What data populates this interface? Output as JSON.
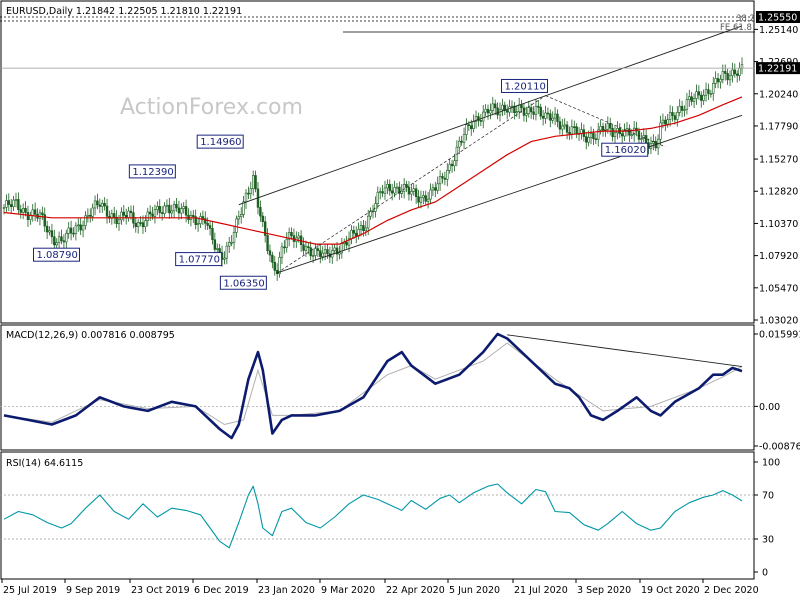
{
  "chart_data": [
    {
      "type": "candlestick",
      "title": "EURUSD,Daily  1.21842 1.22505 1.21810 1.22191",
      "watermark": "ActionForex.com",
      "x_ticks": [
        "25 Jul 2019",
        "9 Sep 2019",
        "23 Oct 2019",
        "6 Dec 2019",
        "23 Jan 2020",
        "9 Mar 2020",
        "22 Apr 2020",
        "5 Jun 2020",
        "21 Jul 2020",
        "3 Sep 2020",
        "19 Oct 2020",
        "2 Dec 2020"
      ],
      "y_ticks": [
        "1.25140",
        "1.22690",
        "1.20240",
        "1.17790",
        "1.15270",
        "1.12820",
        "1.10370",
        "1.07920",
        "1.05470",
        "1.03020"
      ],
      "ylim": [
        1.0302,
        1.2555
      ],
      "last_price": "1.22191",
      "fib_labels": [
        {
          "text": "38.2",
          "level": "1.25550"
        },
        {
          "text": "FE 61.8",
          "level": "1.25140"
        }
      ],
      "pivots": [
        {
          "label": "1.08790",
          "date": "2019-08-01",
          "value": 1.0879
        },
        {
          "label": "1.12390",
          "date": "2019-11-04",
          "value": 1.1239
        },
        {
          "label": "1.07770",
          "date": "2020-02-20",
          "value": 1.0777
        },
        {
          "label": "1.14960",
          "date": "2020-03-09",
          "value": 1.1496
        },
        {
          "label": "1.06350",
          "date": "2020-03-23",
          "value": 1.0635
        },
        {
          "label": "1.20110",
          "date": "2020-09-01",
          "value": 1.2011
        },
        {
          "label": "1.16020",
          "date": "2020-11-04",
          "value": 1.1602
        }
      ],
      "close_path": [
        [
          0,
          1.116
        ],
        [
          5,
          1.118
        ],
        [
          10,
          1.112
        ],
        [
          15,
          1.108
        ],
        [
          18,
          1.1
        ],
        [
          20,
          1.094
        ],
        [
          24,
          1.09
        ],
        [
          28,
          1.096
        ],
        [
          32,
          1.104
        ],
        [
          36,
          1.112
        ],
        [
          40,
          1.118
        ],
        [
          44,
          1.112
        ],
        [
          48,
          1.106
        ],
        [
          52,
          1.11
        ],
        [
          56,
          1.104
        ],
        [
          60,
          1.108
        ],
        [
          64,
          1.112
        ],
        [
          68,
          1.118
        ],
        [
          72,
          1.114
        ],
        [
          76,
          1.11
        ],
        [
          80,
          1.108
        ],
        [
          84,
          1.106
        ],
        [
          86,
          1.094
        ],
        [
          88,
          1.086
        ],
        [
          90,
          1.08
        ],
        [
          92,
          1.082
        ],
        [
          96,
          1.096
        ],
        [
          99,
          1.112
        ],
        [
          102,
          1.13
        ],
        [
          104,
          1.14
        ],
        [
          106,
          1.12
        ],
        [
          108,
          1.1
        ],
        [
          110,
          1.084
        ],
        [
          112,
          1.07
        ],
        [
          114,
          1.07
        ],
        [
          116,
          1.086
        ],
        [
          118,
          1.094
        ],
        [
          122,
          1.09
        ],
        [
          126,
          1.086
        ],
        [
          130,
          1.082
        ],
        [
          134,
          1.078
        ],
        [
          138,
          1.084
        ],
        [
          142,
          1.088
        ],
        [
          146,
          1.094
        ],
        [
          150,
          1.102
        ],
        [
          154,
          1.116
        ],
        [
          158,
          1.128
        ],
        [
          162,
          1.132
        ],
        [
          166,
          1.13
        ],
        [
          170,
          1.126
        ],
        [
          174,
          1.124
        ],
        [
          178,
          1.126
        ],
        [
          182,
          1.134
        ],
        [
          186,
          1.148
        ],
        [
          190,
          1.164
        ],
        [
          194,
          1.176
        ],
        [
          198,
          1.186
        ],
        [
          202,
          1.19
        ],
        [
          206,
          1.188
        ],
        [
          210,
          1.194
        ],
        [
          214,
          1.19
        ],
        [
          218,
          1.186
        ],
        [
          222,
          1.194
        ],
        [
          226,
          1.184
        ],
        [
          230,
          1.182
        ],
        [
          234,
          1.178
        ],
        [
          238,
          1.174
        ],
        [
          242,
          1.168
        ],
        [
          246,
          1.172
        ],
        [
          250,
          1.176
        ],
        [
          254,
          1.172
        ],
        [
          258,
          1.176
        ],
        [
          262,
          1.172
        ],
        [
          266,
          1.168
        ],
        [
          270,
          1.166
        ],
        [
          272,
          1.164
        ],
        [
          274,
          1.176
        ],
        [
          278,
          1.184
        ],
        [
          282,
          1.192
        ],
        [
          286,
          1.196
        ],
        [
          290,
          1.2
        ],
        [
          294,
          1.206
        ],
        [
          298,
          1.212
        ],
        [
          302,
          1.216
        ],
        [
          306,
          1.222
        ],
        [
          308,
          1.2219
        ]
      ],
      "ma_path": [
        [
          0,
          1.112
        ],
        [
          20,
          1.108
        ],
        [
          40,
          1.108
        ],
        [
          60,
          1.108
        ],
        [
          80,
          1.108
        ],
        [
          90,
          1.104
        ],
        [
          100,
          1.1
        ],
        [
          110,
          1.096
        ],
        [
          120,
          1.092
        ],
        [
          130,
          1.088
        ],
        [
          140,
          1.088
        ],
        [
          150,
          1.096
        ],
        [
          160,
          1.106
        ],
        [
          170,
          1.114
        ],
        [
          180,
          1.12
        ],
        [
          190,
          1.132
        ],
        [
          200,
          1.144
        ],
        [
          210,
          1.156
        ],
        [
          220,
          1.166
        ],
        [
          230,
          1.17
        ],
        [
          240,
          1.172
        ],
        [
          250,
          1.174
        ],
        [
          260,
          1.174
        ],
        [
          270,
          1.176
        ],
        [
          280,
          1.18
        ],
        [
          290,
          1.186
        ],
        [
          300,
          1.194
        ],
        [
          308,
          1.2
        ]
      ],
      "trendlines": [
        {
          "name": "upper-channel",
          "from": [
            98,
            1.118
          ],
          "to": [
            308,
            1.254
          ]
        },
        {
          "name": "lower-channel",
          "from": [
            114,
            1.066
          ],
          "to": [
            308,
            1.186
          ]
        },
        {
          "name": "rise-dashed",
          "from": [
            114,
            1.066
          ],
          "to": [
            226,
            1.201
          ]
        },
        {
          "name": "pullback-dashed",
          "from": [
            226,
            1.201
          ],
          "to": [
            276,
            1.162
          ]
        }
      ]
    },
    {
      "type": "line",
      "title": "MACD(12,26,9) 0.007816 0.008795",
      "y_ticks": [
        "0.015991",
        "0.00",
        "-0.00876"
      ],
      "ylim": [
        -0.00876,
        0.015991
      ],
      "series": [
        {
          "name": "MACD",
          "values": [
            [
              0,
              -0.002
            ],
            [
              10,
              -0.003
            ],
            [
              20,
              -0.004
            ],
            [
              30,
              -0.002
            ],
            [
              40,
              0.002
            ],
            [
              50,
              0.0
            ],
            [
              60,
              -0.001
            ],
            [
              70,
              0.001
            ],
            [
              80,
              0.0
            ],
            [
              90,
              -0.005
            ],
            [
              95,
              -0.007
            ],
            [
              98,
              -0.004
            ],
            [
              102,
              0.006
            ],
            [
              106,
              0.012
            ],
            [
              108,
              0.008
            ],
            [
              112,
              -0.006
            ],
            [
              116,
              -0.003
            ],
            [
              120,
              -0.002
            ],
            [
              130,
              -0.002
            ],
            [
              140,
              -0.001
            ],
            [
              150,
              0.002
            ],
            [
              160,
              0.01
            ],
            [
              166,
              0.012
            ],
            [
              170,
              0.009
            ],
            [
              180,
              0.005
            ],
            [
              190,
              0.007
            ],
            [
              200,
              0.012
            ],
            [
              206,
              0.016
            ],
            [
              210,
              0.015
            ],
            [
              220,
              0.01
            ],
            [
              230,
              0.005
            ],
            [
              236,
              0.004
            ],
            [
              240,
              0.002
            ],
            [
              245,
              -0.002
            ],
            [
              250,
              -0.003
            ],
            [
              256,
              -0.001
            ],
            [
              264,
              0.002
            ],
            [
              270,
              -0.001
            ],
            [
              274,
              -0.002
            ],
            [
              280,
              0.001
            ],
            [
              290,
              0.004
            ],
            [
              296,
              0.007
            ],
            [
              300,
              0.007
            ],
            [
              304,
              0.0085
            ],
            [
              308,
              0.0078
            ]
          ]
        },
        {
          "name": "Signal",
          "values": [
            [
              0,
              -0.002
            ],
            [
              20,
              -0.0035
            ],
            [
              40,
              0.0015
            ],
            [
              60,
              -0.0005
            ],
            [
              80,
              0.0
            ],
            [
              92,
              -0.004
            ],
            [
              100,
              -0.003
            ],
            [
              106,
              0.008
            ],
            [
              112,
              -0.002
            ],
            [
              120,
              -0.002
            ],
            [
              140,
              -0.001
            ],
            [
              160,
              0.007
            ],
            [
              170,
              0.009
            ],
            [
              180,
              0.006
            ],
            [
              200,
              0.01
            ],
            [
              210,
              0.014
            ],
            [
              230,
              0.006
            ],
            [
              250,
              -0.001
            ],
            [
              270,
              0.0
            ],
            [
              290,
              0.004
            ],
            [
              300,
              0.0065
            ],
            [
              308,
              0.0088
            ]
          ]
        }
      ],
      "trendline": {
        "from": [
          210,
          0.0158
        ],
        "to": [
          308,
          0.0088
        ]
      }
    },
    {
      "type": "line",
      "title": "RSI(14) 64.6115",
      "y_ticks": [
        "100",
        "70",
        "30",
        "0"
      ],
      "ylim": [
        0,
        100
      ],
      "levels": [
        70,
        30
      ],
      "series": [
        {
          "name": "RSI",
          "values": [
            [
              0,
              48
            ],
            [
              6,
              55
            ],
            [
              12,
              52
            ],
            [
              18,
              45
            ],
            [
              24,
              40
            ],
            [
              28,
              44
            ],
            [
              34,
              58
            ],
            [
              40,
              70
            ],
            [
              46,
              55
            ],
            [
              52,
              48
            ],
            [
              58,
              62
            ],
            [
              64,
              50
            ],
            [
              70,
              58
            ],
            [
              76,
              56
            ],
            [
              82,
              52
            ],
            [
              86,
              40
            ],
            [
              90,
              28
            ],
            [
              94,
              22
            ],
            [
              98,
              45
            ],
            [
              102,
              70
            ],
            [
              104,
              78
            ],
            [
              106,
              62
            ],
            [
              108,
              40
            ],
            [
              112,
              33
            ],
            [
              116,
              55
            ],
            [
              120,
              58
            ],
            [
              126,
              45
            ],
            [
              132,
              40
            ],
            [
              138,
              50
            ],
            [
              144,
              62
            ],
            [
              150,
              70
            ],
            [
              156,
              66
            ],
            [
              162,
              60
            ],
            [
              166,
              56
            ],
            [
              170,
              65
            ],
            [
              176,
              57
            ],
            [
              182,
              67
            ],
            [
              186,
              70
            ],
            [
              190,
              63
            ],
            [
              196,
              72
            ],
            [
              202,
              78
            ],
            [
              206,
              80
            ],
            [
              210,
              72
            ],
            [
              216,
              62
            ],
            [
              222,
              75
            ],
            [
              226,
              73
            ],
            [
              230,
              55
            ],
            [
              236,
              54
            ],
            [
              242,
              43
            ],
            [
              248,
              38
            ],
            [
              252,
              44
            ],
            [
              258,
              55
            ],
            [
              264,
              44
            ],
            [
              270,
              38
            ],
            [
              274,
              40
            ],
            [
              280,
              55
            ],
            [
              286,
              63
            ],
            [
              292,
              68
            ],
            [
              296,
              70
            ],
            [
              300,
              74
            ],
            [
              304,
              70
            ],
            [
              308,
              64.6
            ]
          ]
        }
      ]
    }
  ]
}
